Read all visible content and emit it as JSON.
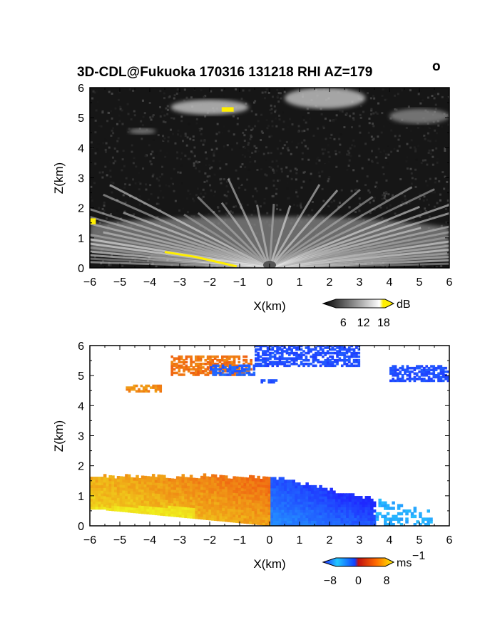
{
  "title": "3D-CDL@Fukuoka 170316 131218 RHI AZ=179",
  "title_superscript": "o",
  "colors": {
    "panel_bg_top": "#1a1a1a",
    "marker_yellow": "#ffee00",
    "vel_neg_dark": "#1030ff",
    "vel_neg_light": "#20c8ff",
    "vel_pos_dark": "#e81010",
    "vel_pos_light": "#ffe000"
  },
  "chart_data": [
    {
      "type": "heatmap",
      "name": "intensity-panel",
      "xlabel": "X(km)",
      "ylabel": "Z(km)",
      "xlim": [
        -6,
        6
      ],
      "ylim": [
        0,
        6
      ],
      "xticks": [
        "−6",
        "−5",
        "−4",
        "−3",
        "−2",
        "−1",
        "0",
        "1",
        "2",
        "3",
        "4",
        "5",
        "6"
      ],
      "yticks": [
        "0",
        "1",
        "2",
        "3",
        "4",
        "5",
        "6"
      ],
      "colorbar": {
        "ticks": [
          "6",
          "12",
          "18"
        ],
        "unit": "dB",
        "range": [
          0,
          21
        ]
      },
      "features": [
        {
          "kind": "fan",
          "x_range": [
            -6,
            6
          ],
          "z_top": [
            1.0,
            1.75
          ],
          "value": "bright"
        },
        {
          "kind": "cloud",
          "x": [
            -3.3,
            -0.7
          ],
          "z": [
            5.1,
            5.6
          ],
          "value": "bright"
        },
        {
          "kind": "cloud",
          "x": [
            0.5,
            3.2
          ],
          "z": [
            5.3,
            6.0
          ],
          "value": "bright"
        },
        {
          "kind": "cloud",
          "x": [
            4.0,
            6.0
          ],
          "z": [
            4.8,
            5.3
          ],
          "value": "medium"
        },
        {
          "kind": "cloud",
          "x": [
            -4.7,
            -3.8
          ],
          "z": [
            4.45,
            4.65
          ],
          "value": "medium"
        },
        {
          "kind": "saturated",
          "x": [
            -3.5,
            -1.1
          ],
          "z": [
            0.0,
            0.5
          ],
          "note": "ground edge"
        },
        {
          "kind": "saturated",
          "x": [
            -1.6,
            -1.2
          ],
          "z": [
            5.2,
            5.35
          ],
          "note": "cloud spot"
        },
        {
          "kind": "saturated",
          "x": [
            -6.0,
            -5.8
          ],
          "z": [
            1.45,
            1.65
          ],
          "note": "edge spot"
        }
      ]
    },
    {
      "type": "heatmap",
      "name": "velocity-panel",
      "xlabel": "X(km)",
      "ylabel": "Z(km)",
      "xlim": [
        -6,
        6
      ],
      "ylim": [
        0,
        6
      ],
      "xticks": [
        "−6",
        "−5",
        "−4",
        "−3",
        "−2",
        "−1",
        "0",
        "1",
        "2",
        "3",
        "4",
        "5",
        "6"
      ],
      "yticks": [
        "0",
        "1",
        "2",
        "3",
        "4",
        "5",
        "6"
      ],
      "colorbar": {
        "ticks": [
          "−8",
          "0",
          "8"
        ],
        "unit": "ms",
        "unit_superscript": "−1",
        "range": [
          -10,
          10
        ]
      },
      "features": [
        {
          "kind": "fan",
          "x_range": [
            -6,
            0
          ],
          "z_top": [
            1.1,
            1.75
          ],
          "value_range": [
            1,
            9
          ],
          "sign": "positive"
        },
        {
          "kind": "fan",
          "x_range": [
            0,
            5.2
          ],
          "z_top": [
            0.4,
            1.6
          ],
          "value_range": [
            -9,
            -2
          ],
          "sign": "negative"
        },
        {
          "kind": "cloud",
          "x": [
            -3.3,
            -0.6
          ],
          "z": [
            5.0,
            5.6
          ],
          "value": 4
        },
        {
          "kind": "cloud",
          "x": [
            -2.0,
            -0.5
          ],
          "z": [
            5.0,
            5.3
          ],
          "value": -6
        },
        {
          "kind": "cloud",
          "x": [
            -0.5,
            3.0
          ],
          "z": [
            5.3,
            6.0
          ],
          "value": -7
        },
        {
          "kind": "cloud",
          "x": [
            4.0,
            6.0
          ],
          "z": [
            4.8,
            5.3
          ],
          "value": -7
        },
        {
          "kind": "cloud",
          "x": [
            -4.8,
            -3.6
          ],
          "z": [
            4.45,
            4.65
          ],
          "value": 5
        },
        {
          "kind": "cloud",
          "x": [
            -0.3,
            0.2
          ],
          "z": [
            4.75,
            4.85
          ],
          "value": -7
        }
      ]
    }
  ]
}
